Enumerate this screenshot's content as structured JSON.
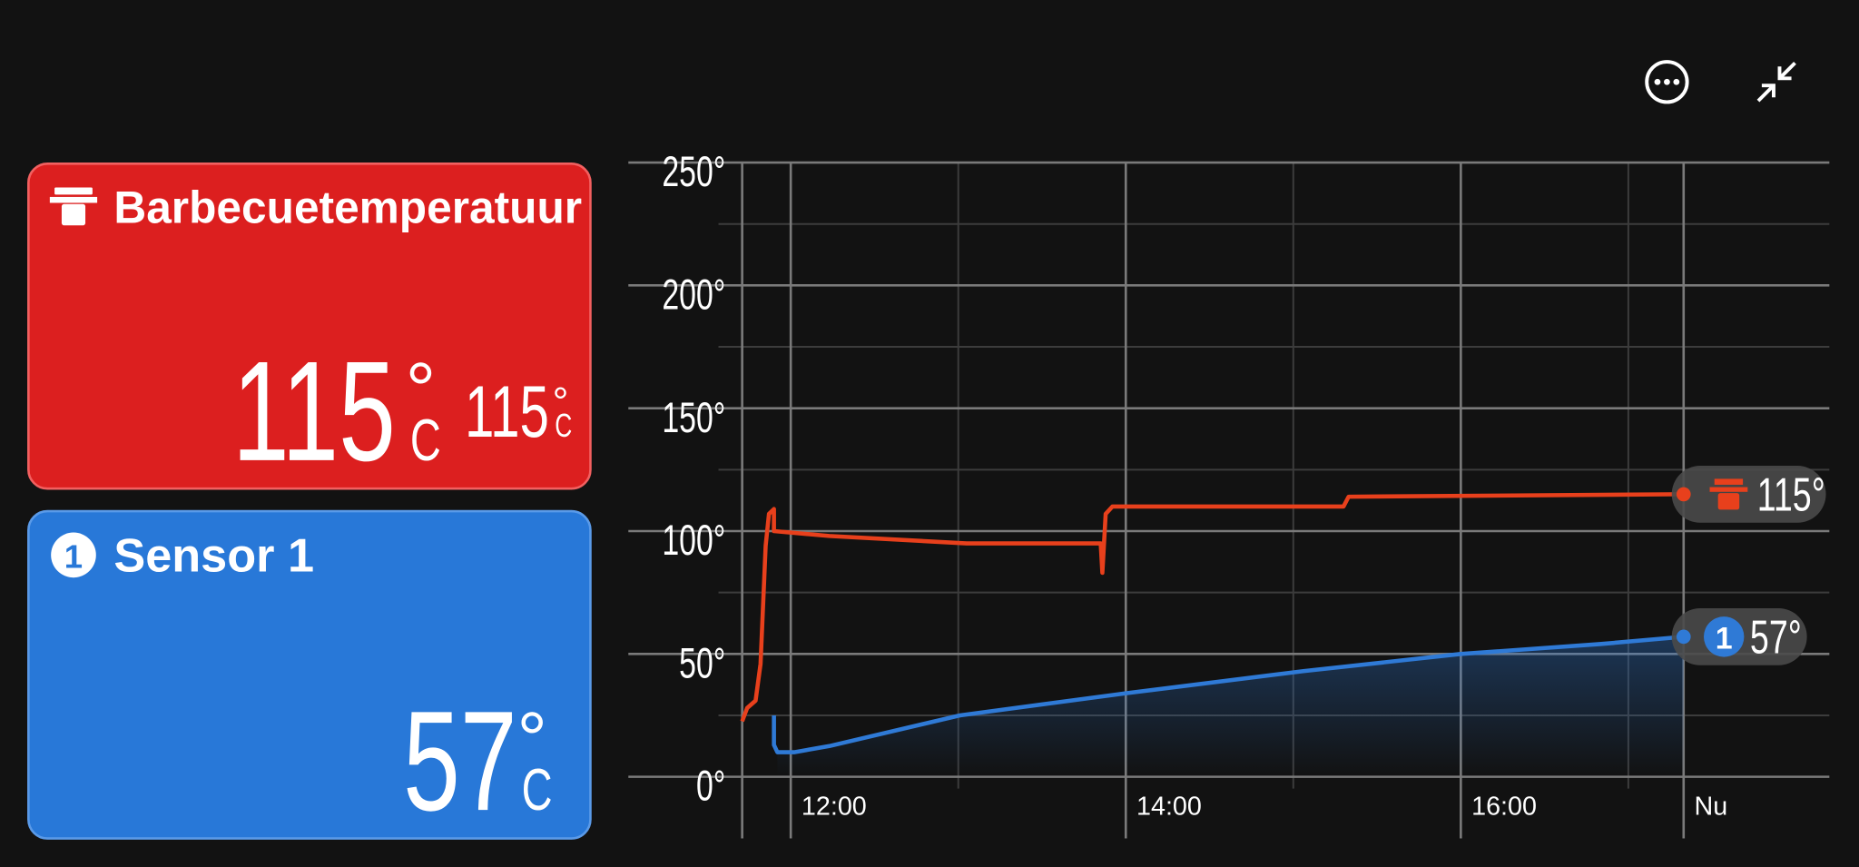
{
  "cards": [
    {
      "title": "Barbecuetemperatuur",
      "value": "115",
      "degree": "°",
      "unit": "C",
      "target": "115",
      "color": "#dc1f1f"
    },
    {
      "badge": "1",
      "title": "Sensor 1",
      "value": "57",
      "degree": "°",
      "unit": "C",
      "color": "#2878d8"
    }
  ],
  "chart_data": {
    "type": "line",
    "xlim": [
      11.71,
      18.2
    ],
    "xticks": [
      {
        "value": 12,
        "label": "12:00"
      },
      {
        "value": 14,
        "label": "14:00"
      },
      {
        "value": 16,
        "label": "16:00"
      },
      {
        "value": 17.33,
        "label": "Nu"
      }
    ],
    "xminor": [
      13,
      15,
      17
    ],
    "ylim": [
      0,
      250
    ],
    "yticks": [
      {
        "value": 0,
        "label": "0°"
      },
      {
        "value": 50,
        "label": "50°"
      },
      {
        "value": 100,
        "label": "100°"
      },
      {
        "value": 150,
        "label": "150°"
      },
      {
        "value": 200,
        "label": "200°"
      },
      {
        "value": 250,
        "label": "250°"
      }
    ],
    "yminor": [
      25,
      75,
      125,
      175,
      225
    ],
    "grid": true,
    "series": [
      {
        "color": "#e8401c",
        "end_label": "115°",
        "x": [
          11.71,
          11.74,
          11.79,
          11.82,
          11.85,
          11.87,
          11.9,
          11.9,
          12.23,
          13.05,
          13.85,
          13.86,
          13.88,
          13.92,
          15.3,
          15.33,
          17.33
        ],
        "values": [
          22.6,
          28,
          31,
          46,
          94,
          107,
          109,
          100,
          98,
          95,
          95,
          83,
          107,
          110,
          110,
          114,
          115
        ]
      },
      {
        "color": "#2f7ad6",
        "end_label": "57°",
        "badge": "1",
        "x": [
          11.9,
          11.9,
          11.92,
          12.02,
          12.23,
          13.01,
          14.0,
          15.06,
          16.0,
          16.83,
          17.33
        ],
        "values": [
          25,
          13,
          10,
          10,
          12.5,
          25,
          34,
          43,
          50,
          54,
          57
        ]
      }
    ]
  }
}
